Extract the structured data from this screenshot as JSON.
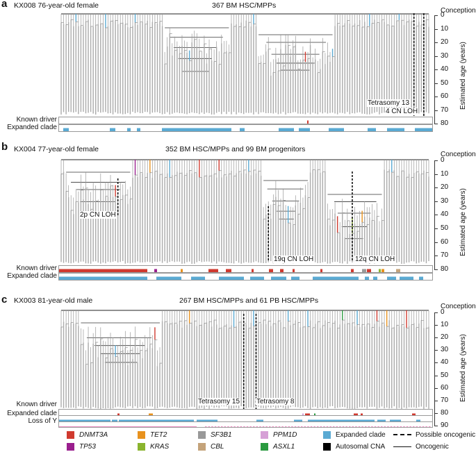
{
  "panels": [
    {
      "id": "a",
      "label": "a",
      "sample": "KX008 76-year-old female",
      "cells": "367 BM HSC/MPPs",
      "annotations": [
        "Tetrasomy 13",
        "4 CN LOH"
      ],
      "tracks": [
        "Known driver",
        "Expanded clade"
      ],
      "driver_colors": [
        "#d03a2f"
      ],
      "expanded_color": "#5aaad3"
    },
    {
      "id": "b",
      "label": "b",
      "sample": "KX004 77-year-old female",
      "cells": "352 BM HSC/MPPs and 99 BM progenitors",
      "annotations": [
        "2p CN LOH",
        "19q CN LOH",
        "12q CN LOH"
      ],
      "tracks": [
        "Known driver",
        "Expanded clade"
      ],
      "driver_colors": [
        "#d03a2f",
        "#e8921e",
        "#9a1f8e",
        "#8ab42e",
        "#c4a37a",
        "#999999"
      ],
      "expanded_color": "#5aaad3"
    },
    {
      "id": "c",
      "label": "c",
      "sample": "KX003 81-year-old male",
      "cells": "267 BM HSC/MPPs and 61 PB HSC/MPPs",
      "annotations": [
        "Tetrasomy 15",
        "Tetrasomy 8"
      ],
      "tracks": [
        "Known driver",
        "Expanded clade",
        "Loss of Y"
      ],
      "driver_colors": [
        "#d03a2f",
        "#e8921e",
        "#2a9a3f",
        "#d0a0d0"
      ],
      "expanded_color": "#5aaad3",
      "loy_color": "#e0218a"
    }
  ],
  "axis": {
    "title": "Estimated age (years)",
    "top_label": "Conception",
    "ticks_ab": [
      "0",
      "10",
      "20",
      "30",
      "40",
      "50",
      "60",
      "70",
      "80"
    ],
    "ticks_c": [
      "0",
      "10",
      "20",
      "30",
      "40",
      "50",
      "60",
      "70",
      "80",
      "90"
    ]
  },
  "legend": [
    {
      "label": "DNMT3A",
      "color": "#d03a2f",
      "italic": true
    },
    {
      "label": "TET2",
      "color": "#e8921e",
      "italic": true
    },
    {
      "label": "SF3B1",
      "color": "#999999",
      "italic": true
    },
    {
      "label": "PPM1D",
      "color": "#d6a0d6",
      "italic": true
    },
    {
      "label": "Expanded clade",
      "color": "#5aaad3",
      "italic": false
    },
    {
      "label": "Possible oncogenic",
      "style": "dashed"
    },
    {
      "label": "TP53",
      "color": "#9a1f8e",
      "italic": true
    },
    {
      "label": "KRAS",
      "color": "#8ab42e",
      "italic": true
    },
    {
      "label": "CBL",
      "color": "#c4a37a",
      "italic": true
    },
    {
      "label": "ASXL1",
      "color": "#2a9a3f",
      "italic": true
    },
    {
      "label": "Autosomal CNA",
      "color": "#000000",
      "italic": false
    },
    {
      "label": "Oncogenic",
      "style": "solid"
    }
  ]
}
